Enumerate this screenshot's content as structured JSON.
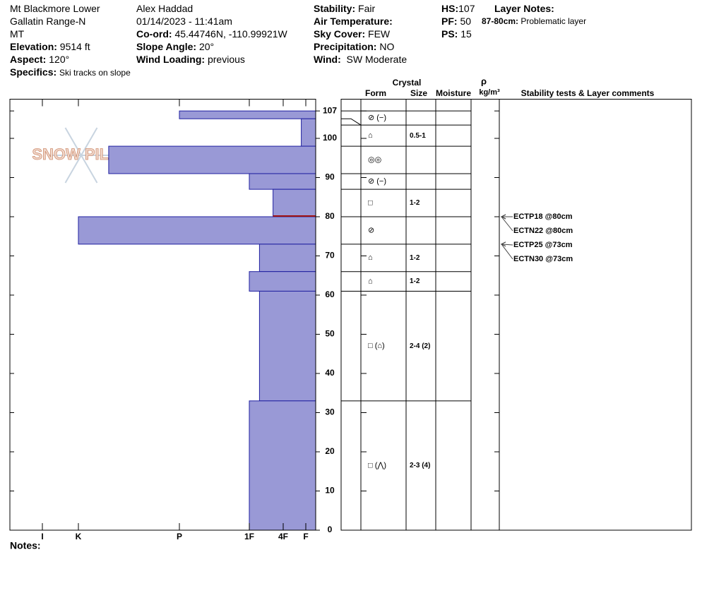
{
  "header": {
    "location": "Mt Blackmore Lower",
    "range": "Gallatin Range-N",
    "state": "MT",
    "elevation": {
      "label": "Elevation:",
      "value": "9514 ft"
    },
    "aspect": {
      "label": "Aspect:",
      "value": "120°"
    },
    "specifics": {
      "label": "Specifics:",
      "value": "Ski tracks on slope"
    },
    "observer": "Alex Haddad",
    "datetime": "01/14/2023 - 11:41am",
    "coord": {
      "label": "Co-ord:",
      "value": "45.44746N, -110.99921W"
    },
    "slope": {
      "label": "Slope Angle:",
      "value": "20°"
    },
    "wind_loading": {
      "label": "Wind Loading:",
      "value": "previous"
    },
    "stability": {
      "label": "Stability:",
      "value": "Fair"
    },
    "air_temp": {
      "label": "Air Temperature:"
    },
    "sky": {
      "label": "Sky Cover:",
      "value": "FEW"
    },
    "precip": {
      "label": "Precipitation:",
      "value": "NO"
    },
    "wind": {
      "label": "Wind:",
      "value": "SW Moderate"
    },
    "hs": {
      "label": "HS:",
      "value": "107"
    },
    "pf": {
      "label": "PF:",
      "value": "50"
    },
    "ps": {
      "label": "PS:",
      "value": "15"
    },
    "layer_notes": {
      "label": "Layer Notes:",
      "range": "87-80cm:",
      "text": "Problematic layer"
    }
  },
  "logo": "SNOW PILOT",
  "chart_data": {
    "type": "bar",
    "color": "#9999d6",
    "tops": [
      107,
      105,
      98,
      91,
      87,
      80,
      73,
      66,
      61,
      33
    ],
    "bottoms": [
      105,
      98,
      91,
      87,
      80,
      73,
      66,
      61,
      33,
      0
    ],
    "values": [
      4,
      1.2,
      4.7,
      3,
      2.3,
      5,
      2.7,
      3,
      2.7,
      3
    ],
    "problem_height": 80,
    "problem_color": "#a01010",
    "xlim": [
      0,
      6.9
    ],
    "xticks": [
      {
        "value": 6,
        "label": "I"
      },
      {
        "value": 5,
        "label": "K"
      },
      {
        "value": 4,
        "label": "P"
      },
      {
        "value": 3,
        "label": "1F"
      },
      {
        "value": 2,
        "label": "4F"
      },
      {
        "value": 1,
        "label": "F"
      }
    ],
    "ylim": [
      0,
      110
    ],
    "yticks": [
      0,
      10,
      20,
      30,
      40,
      50,
      60,
      70,
      80,
      90,
      100,
      107
    ]
  },
  "table": {
    "crystal": "Crystal",
    "form": "Form",
    "size": "Size",
    "moisture": "Moisture",
    "rho": "ρ",
    "density": "kg/m³",
    "comments": "Stability tests & Layer comments",
    "forms": [
      "⊘ (−)",
      "⌂",
      "◎◎",
      "⊘ (−)",
      "□",
      "⊘",
      "⌂",
      "⌂",
      "□ (⌂)",
      "□ (⋀)"
    ],
    "sizes": [
      null,
      "0.5-1",
      null,
      null,
      "1-2",
      null,
      "1-2",
      "1-2",
      "2-4 (2)",
      "2-3 (4)"
    ]
  },
  "tests": {
    "labels": [
      "ECTP18 @80cm",
      "ECTN22 @80cm",
      "ECTP25 @73cm",
      "ECTN30 @73cm"
    ],
    "heights": [
      80,
      80,
      73,
      73
    ]
  },
  "notes": "Notes:"
}
